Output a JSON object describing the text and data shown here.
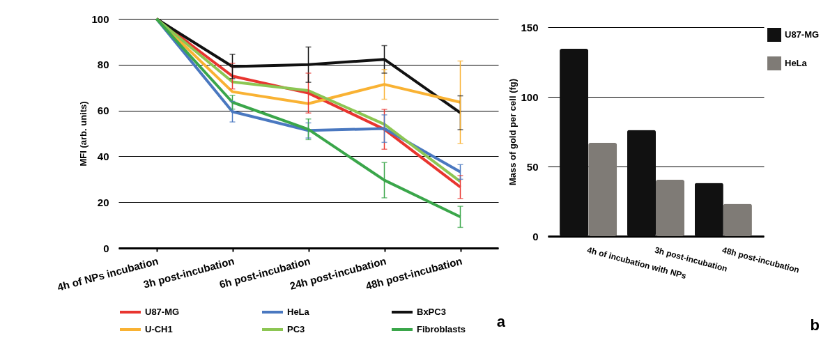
{
  "chart_data": [
    {
      "type": "line",
      "ylabel": "MFI (arb. units)",
      "categories": [
        "4h of NPs incubation",
        "3h post-incubation",
        "6h post-incubation",
        "24h post-incubation",
        "48h post-incubation"
      ],
      "ylim": [
        0,
        100
      ],
      "yticks": [
        0,
        20,
        40,
        60,
        80,
        100
      ],
      "grid": "y",
      "legend": "bottom",
      "annotations": [
        "a"
      ],
      "series": [
        {
          "name": "U87-MG",
          "color": "#e8352f",
          "values": [
            100,
            75,
            67.6,
            51.8,
            26.6
          ],
          "errors": [
            null,
            5.6,
            8.7,
            8.7,
            5
          ]
        },
        {
          "name": "HeLa",
          "color": "#4a78c0",
          "values": [
            100,
            59.5,
            51.3,
            52.1,
            33.2
          ],
          "errors": [
            null,
            4.5,
            3.3,
            6,
            3.2
          ]
        },
        {
          "name": "BxPC3",
          "color": "#111111",
          "values": [
            100,
            79.2,
            80,
            82.3,
            59
          ],
          "errors": [
            null,
            5.3,
            7.7,
            6,
            7.4
          ]
        },
        {
          "name": "U-CH1",
          "color": "#f9b233",
          "values": [
            100,
            68.2,
            63,
            71.4,
            63.6
          ],
          "errors": [
            null,
            null,
            null,
            6.5,
            18
          ]
        },
        {
          "name": "PC3",
          "color": "#8cc653",
          "values": [
            100,
            72.5,
            68.7,
            54,
            29
          ]
        },
        {
          "name": "Fibroblasts",
          "color": "#3aa64a",
          "values": [
            100,
            63.6,
            51.8,
            29.6,
            13.6
          ],
          "errors": [
            null,
            3,
            4.5,
            7.7,
            4.6
          ]
        }
      ]
    },
    {
      "type": "bar",
      "ylabel": "Mass of gold per cell (fg)",
      "categories": [
        "4h of incubation with NPs",
        "3h post-incubation",
        "48h post-incubation"
      ],
      "ylim": [
        0,
        150
      ],
      "yticks": [
        0,
        50,
        100,
        150
      ],
      "grid": "y",
      "legend": "right",
      "annotations": [
        "b"
      ],
      "series": [
        {
          "name": "U87-MG",
          "color": "#111111",
          "values": [
            134.5,
            76.2,
            38.3
          ]
        },
        {
          "name": "HeLa",
          "color": "#7f7b76",
          "values": [
            67,
            40.5,
            23.3
          ]
        }
      ]
    }
  ]
}
